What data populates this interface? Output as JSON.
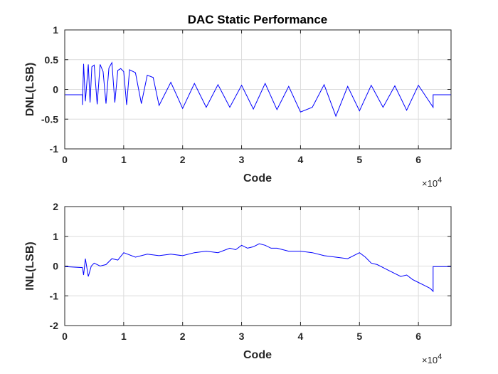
{
  "chart_data": [
    {
      "type": "line",
      "title": "DAC Static Performance",
      "xlabel": "Code",
      "ylabel": "DNL(LSB)",
      "xlim": [
        0,
        65536
      ],
      "ylim": [
        -1,
        1
      ],
      "x_ticks": [
        "0",
        "1",
        "2",
        "3",
        "4",
        "5",
        "6"
      ],
      "y_ticks": [
        "-1",
        "-0.5",
        "0",
        "0.5",
        "1"
      ],
      "x_exponent": {
        "base": "×10",
        "power": "4"
      },
      "grid": true,
      "color": "#0000ff",
      "series": [
        {
          "x": [
            0,
            3000,
            3000,
            3200,
            3500,
            4000,
            4300,
            4600,
            5000,
            5500,
            6000,
            6500,
            7000,
            7500,
            8000,
            8500,
            9000,
            9500,
            10000,
            10500,
            11000,
            12000,
            13000,
            14000,
            15000,
            16000,
            18000,
            20000,
            22000,
            24000,
            26000,
            28000,
            30000,
            32000,
            34000,
            36000,
            38000,
            40000,
            42000,
            44000,
            46000,
            48000,
            50000,
            52000,
            54000,
            56000,
            58000,
            60000,
            62500,
            62500,
            65536
          ],
          "y": [
            -0.09,
            -0.09,
            -0.26,
            0.43,
            -0.2,
            0.42,
            -0.22,
            0.38,
            0.41,
            -0.25,
            0.42,
            0.3,
            -0.24,
            0.36,
            0.45,
            -0.22,
            0.32,
            0.35,
            0.3,
            -0.26,
            0.33,
            0.28,
            -0.24,
            0.24,
            0.2,
            -0.27,
            0.12,
            -0.32,
            0.1,
            -0.3,
            0.08,
            -0.3,
            0.07,
            -0.33,
            0.1,
            -0.34,
            0.05,
            -0.38,
            -0.3,
            0.08,
            -0.45,
            0.05,
            -0.36,
            0.07,
            -0.3,
            0.06,
            -0.35,
            0.07,
            -0.3,
            -0.09,
            -0.09
          ]
        }
      ]
    },
    {
      "type": "line",
      "xlabel": "Code",
      "ylabel": "INL(LSB)",
      "xlim": [
        0,
        65536
      ],
      "ylim": [
        -2,
        2
      ],
      "x_ticks": [
        "0",
        "1",
        "2",
        "3",
        "4",
        "5",
        "6"
      ],
      "y_ticks": [
        "-2",
        "-1",
        "0",
        "1",
        "2"
      ],
      "x_exponent": {
        "base": "×10",
        "power": "4"
      },
      "grid": true,
      "color": "#0000ff",
      "series": [
        {
          "x": [
            0,
            3000,
            3200,
            3500,
            4000,
            4500,
            5000,
            6000,
            7000,
            8000,
            9000,
            10000,
            12000,
            14000,
            16000,
            18000,
            20000,
            22000,
            24000,
            26000,
            28000,
            29000,
            30000,
            31000,
            32000,
            33000,
            34000,
            35000,
            36000,
            38000,
            40000,
            42000,
            44000,
            46000,
            48000,
            50000,
            51000,
            52000,
            53000,
            54000,
            55000,
            56000,
            57000,
            58000,
            59000,
            60000,
            61000,
            62000,
            62500,
            62500,
            65536
          ],
          "y": [
            -0.02,
            -0.05,
            -0.3,
            0.25,
            -0.35,
            0.0,
            0.1,
            0.0,
            0.05,
            0.25,
            0.2,
            0.45,
            0.3,
            0.4,
            0.35,
            0.4,
            0.35,
            0.45,
            0.5,
            0.45,
            0.6,
            0.55,
            0.7,
            0.6,
            0.65,
            0.75,
            0.7,
            0.6,
            0.6,
            0.5,
            0.5,
            0.45,
            0.35,
            0.3,
            0.25,
            0.45,
            0.3,
            0.1,
            0.05,
            -0.05,
            -0.15,
            -0.25,
            -0.35,
            -0.3,
            -0.45,
            -0.55,
            -0.65,
            -0.75,
            -0.85,
            -0.02,
            -0.02
          ]
        }
      ]
    }
  ]
}
